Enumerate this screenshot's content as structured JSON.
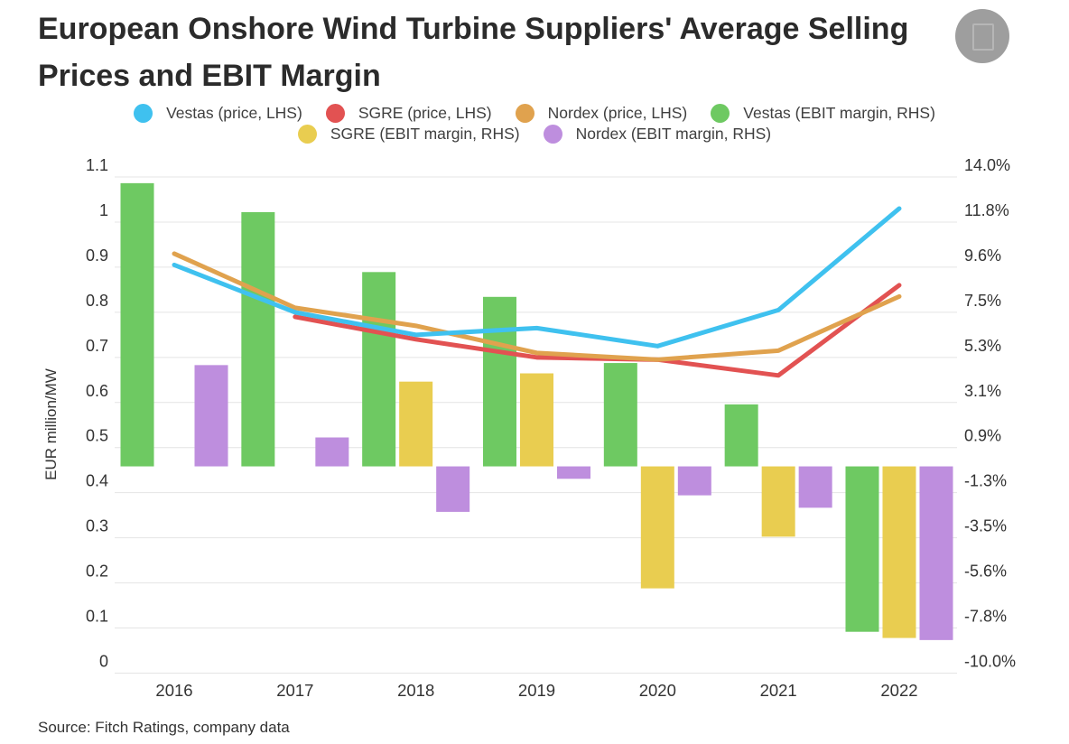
{
  "header": {
    "title_line1": "European Onshore Wind Turbine Suppliers' Average Selling",
    "title_line2": "Prices and EBIT Margin"
  },
  "legend": {
    "items": [
      {
        "label": "Vestas (price, LHS)",
        "color": "#3FC1EF"
      },
      {
        "label": "SGRE (price, LHS)",
        "color": "#E25252"
      },
      {
        "label": "Nordex (price, LHS)",
        "color": "#E0A24E"
      },
      {
        "label": "Vestas (EBIT margin, RHS)",
        "color": "#6EC962"
      },
      {
        "label": "SGRE (EBIT margin, RHS)",
        "color": "#E9CD50"
      },
      {
        "label": "Nordex (EBIT margin, RHS)",
        "color": "#BE8EDE"
      }
    ]
  },
  "chart_data": {
    "type": "combo-bar-line",
    "categories": [
      "2016",
      "2017",
      "2018",
      "2019",
      "2020",
      "2021",
      "2022"
    ],
    "left_axis": {
      "title": "EUR million/MW",
      "min": 0,
      "max": 1.1,
      "tick_labels": [
        "0",
        "0.1",
        "0.2",
        "0.3",
        "0.4",
        "0.5",
        "0.6",
        "0.7",
        "0.8",
        "0.9",
        "1",
        "1.1"
      ]
    },
    "right_axis": {
      "min": -10,
      "max": 14,
      "tick_labels": [
        "-10.0%",
        "-7.8%",
        "-5.6%",
        "-3.5%",
        "-1.3%",
        "0.9%",
        "3.1%",
        "5.3%",
        "7.5%",
        "9.6%",
        "11.8%",
        "14.0%"
      ]
    },
    "grid": true,
    "series": [
      {
        "name": "Vestas (EBIT margin, RHS)",
        "type": "bar",
        "axis": "right",
        "color": "#6EC962",
        "values": [
          13.7,
          12.3,
          9.4,
          8.2,
          5.0,
          3.0,
          -8.0
        ]
      },
      {
        "name": "SGRE (EBIT margin, RHS)",
        "type": "bar",
        "axis": "right",
        "color": "#E9CD50",
        "values": [
          null,
          null,
          4.1,
          4.5,
          -5.9,
          -3.4,
          -8.3
        ]
      },
      {
        "name": "Nordex (EBIT margin, RHS)",
        "type": "bar",
        "axis": "right",
        "color": "#BE8EDE",
        "values": [
          4.9,
          1.4,
          -2.2,
          -0.6,
          -1.4,
          -2.0,
          -8.4
        ]
      },
      {
        "name": "SGRE (price, LHS)",
        "type": "line",
        "axis": "left",
        "color": "#E25252",
        "values": [
          null,
          0.79,
          0.74,
          0.7,
          0.695,
          0.66,
          0.86
        ]
      },
      {
        "name": "Nordex (price, LHS)",
        "type": "line",
        "axis": "left",
        "color": "#E0A24E",
        "values": [
          0.93,
          0.81,
          0.77,
          0.71,
          0.695,
          0.715,
          0.835
        ]
      },
      {
        "name": "Vestas (price, LHS)",
        "type": "line",
        "axis": "left",
        "color": "#3FC1EF",
        "values": [
          0.905,
          0.8,
          0.75,
          0.765,
          0.725,
          0.805,
          1.03
        ]
      }
    ]
  },
  "source": "Source: Fitch Ratings, company data"
}
